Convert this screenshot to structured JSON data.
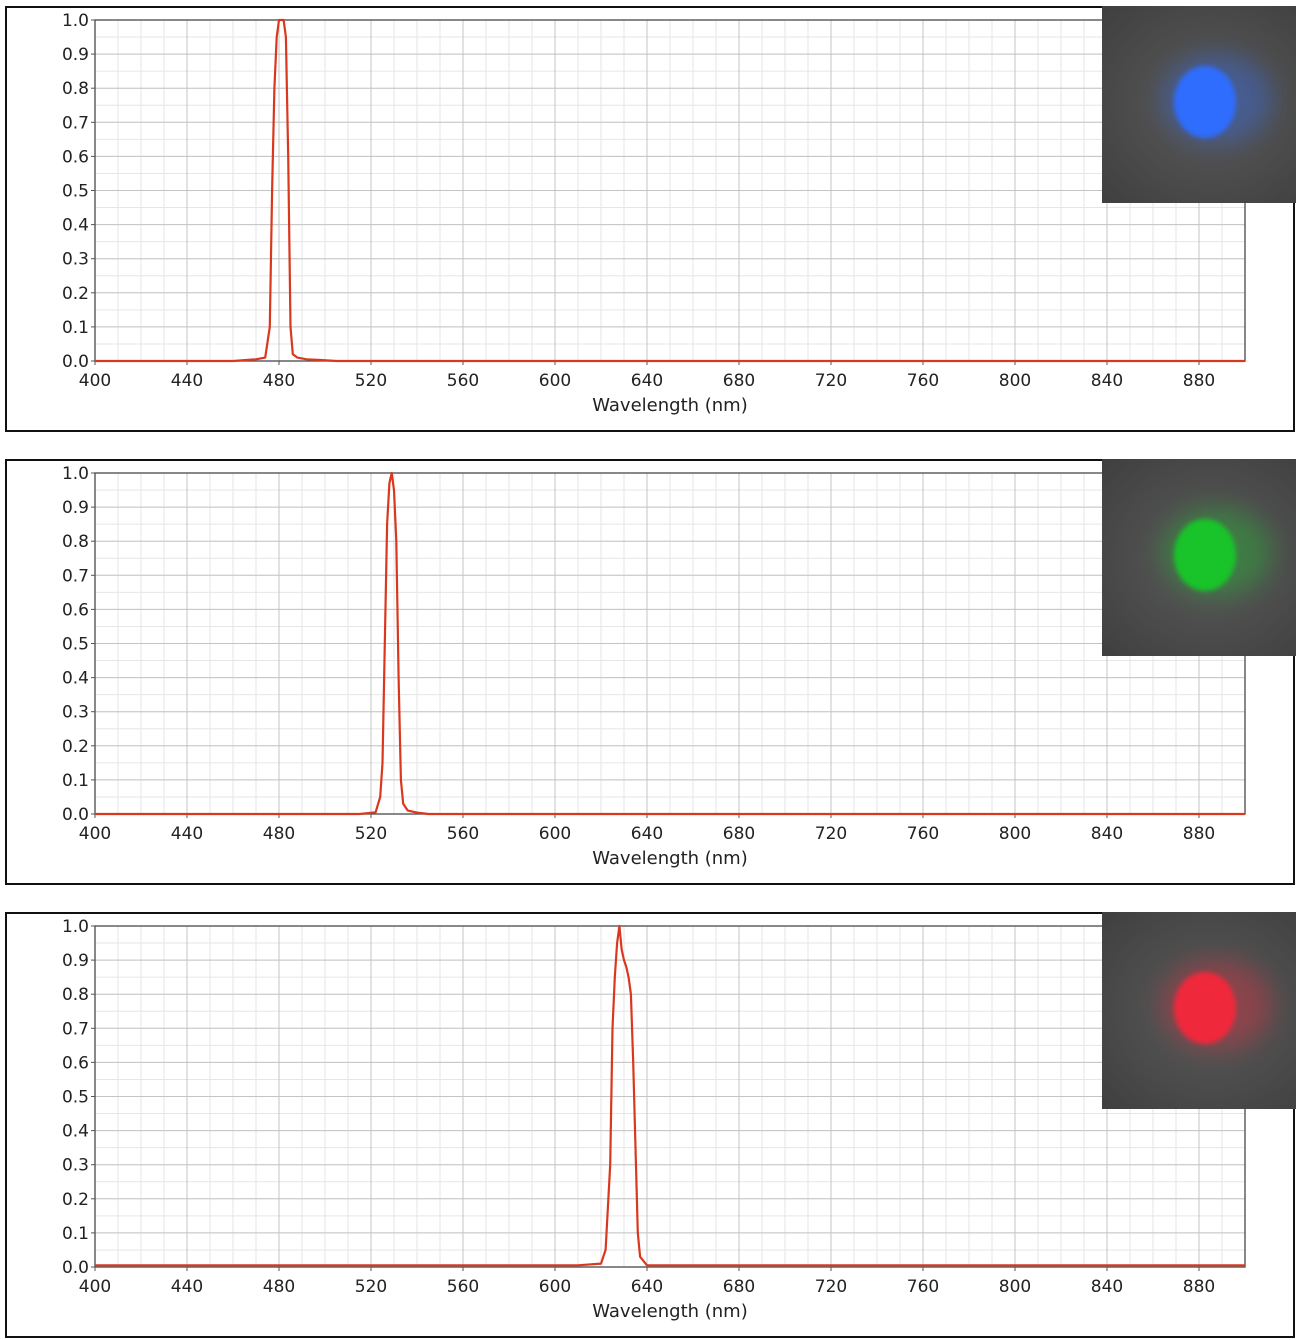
{
  "chart_data": [
    {
      "type": "line",
      "xlabel": "Wavelength (nm)",
      "ylabel": "",
      "xlim": [
        400,
        900
      ],
      "ylim": [
        0,
        1.0
      ],
      "x_ticks": [
        400,
        440,
        480,
        520,
        560,
        600,
        640,
        680,
        720,
        760,
        800,
        840,
        880
      ],
      "y_ticks": [
        0.0,
        0.1,
        0.2,
        0.3,
        0.4,
        0.5,
        0.6,
        0.7,
        0.8,
        0.9,
        1.0
      ],
      "grid": true,
      "line_color": "#d9381e",
      "photo_spot_color": "#2f6dff",
      "series": [
        {
          "x": [
            400,
            460,
            470,
            474,
            476,
            477,
            478,
            479,
            480,
            481,
            482,
            483,
            484,
            485,
            486,
            488,
            492,
            498,
            505,
            900
          ],
          "y": [
            0.0,
            0.0,
            0.005,
            0.01,
            0.1,
            0.5,
            0.8,
            0.95,
            1.0,
            1.0,
            1.0,
            0.95,
            0.6,
            0.1,
            0.02,
            0.01,
            0.005,
            0.003,
            0.0,
            0.0
          ]
        }
      ]
    },
    {
      "type": "line",
      "xlabel": "Wavelength (nm)",
      "ylabel": "",
      "xlim": [
        400,
        900
      ],
      "ylim": [
        0,
        1.0
      ],
      "x_ticks": [
        400,
        440,
        480,
        520,
        560,
        600,
        640,
        680,
        720,
        760,
        800,
        840,
        880
      ],
      "y_ticks": [
        0.0,
        0.1,
        0.2,
        0.3,
        0.4,
        0.5,
        0.6,
        0.7,
        0.8,
        0.9,
        1.0
      ],
      "grid": true,
      "line_color": "#d9381e",
      "photo_spot_color": "#19c32a",
      "series": [
        {
          "x": [
            400,
            515,
            522,
            524,
            525,
            526,
            527,
            528,
            529,
            530,
            531,
            532,
            533,
            534,
            536,
            540,
            545,
            900
          ],
          "y": [
            0.0,
            0.0,
            0.005,
            0.05,
            0.15,
            0.5,
            0.85,
            0.97,
            1.0,
            0.95,
            0.8,
            0.4,
            0.1,
            0.03,
            0.01,
            0.004,
            0.0,
            0.0
          ]
        }
      ]
    },
    {
      "type": "line",
      "xlabel": "Wavelength (nm)",
      "ylabel": "",
      "xlim": [
        400,
        900
      ],
      "ylim": [
        0,
        1.0
      ],
      "x_ticks": [
        400,
        440,
        480,
        520,
        560,
        600,
        640,
        680,
        720,
        760,
        800,
        840,
        880
      ],
      "y_ticks": [
        0.0,
        0.1,
        0.2,
        0.3,
        0.4,
        0.5,
        0.6,
        0.7,
        0.8,
        0.9,
        1.0
      ],
      "grid": true,
      "line_color": "#d9381e",
      "photo_spot_color": "#f0283c",
      "series": [
        {
          "x": [
            400,
            610,
            620,
            622,
            624,
            625,
            626,
            627,
            628,
            629,
            630,
            631,
            632,
            633,
            634,
            635,
            636,
            637,
            640,
            900
          ],
          "y": [
            0.005,
            0.005,
            0.01,
            0.05,
            0.3,
            0.7,
            0.85,
            0.95,
            1.0,
            0.93,
            0.9,
            0.88,
            0.85,
            0.8,
            0.6,
            0.35,
            0.1,
            0.03,
            0.005,
            0.005
          ]
        }
      ]
    }
  ]
}
